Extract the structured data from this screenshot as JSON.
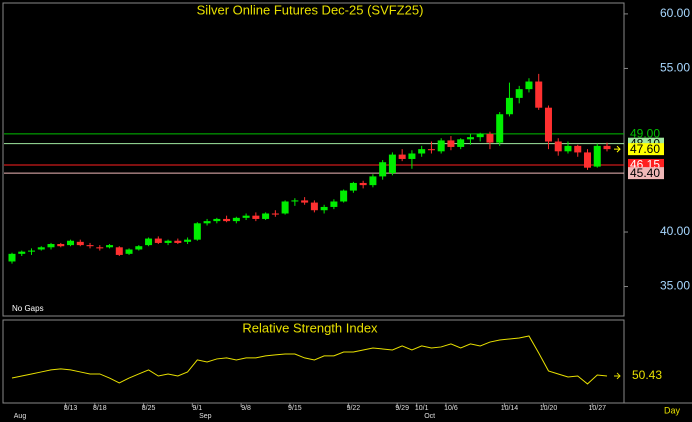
{
  "chart_data": [
    {
      "type": "candlestick",
      "title": "Silver Online Futures Dec-25 (SVFZ25)",
      "note": "No Gaps",
      "categories": [
        null,
        null,
        null,
        null,
        null,
        null,
        "8/13",
        null,
        null,
        "8/18",
        null,
        null,
        null,
        null,
        "8/25",
        null,
        null,
        null,
        null,
        "9/1",
        null,
        null,
        null,
        null,
        "9/8",
        null,
        null,
        null,
        null,
        "9/15",
        null,
        null,
        null,
        null,
        null,
        "9/22",
        null,
        null,
        null,
        null,
        "9/29",
        null,
        "10/1",
        null,
        null,
        "10/6",
        null,
        null,
        null,
        null,
        null,
        "10/14",
        null,
        null,
        null,
        "10/20",
        null,
        null,
        null,
        null,
        "10/27",
        null,
        null
      ],
      "months": [
        "Aug",
        null,
        null,
        null,
        null,
        null,
        null,
        null,
        null,
        null,
        null,
        null,
        null,
        null,
        null,
        null,
        null,
        null,
        null,
        "Sep",
        null,
        null,
        null,
        null,
        null,
        null,
        null,
        null,
        null,
        null,
        null,
        null,
        null,
        null,
        null,
        null,
        null,
        null,
        null,
        null,
        null,
        null,
        "Oct",
        null,
        null,
        null,
        null,
        null,
        null,
        null,
        null,
        null,
        null,
        null,
        null,
        null,
        null,
        null,
        null,
        null,
        null,
        null
      ],
      "x_unit": "Day",
      "open": [
        37.3,
        38.0,
        38.2,
        38.4,
        38.6,
        38.9,
        38.8,
        39.1,
        38.8,
        38.6,
        38.6,
        38.6,
        38.0,
        38.4,
        38.8,
        39.4,
        39.0,
        39.2,
        39.1,
        39.3,
        40.8,
        41.0,
        41.2,
        41.0,
        41.3,
        41.5,
        41.2,
        41.7,
        41.7,
        42.8,
        42.9,
        42.7,
        42.0,
        42.3,
        42.8,
        43.8,
        44.5,
        44.3,
        45.1,
        45.4,
        47.1,
        46.7,
        47.2,
        47.6,
        47.4,
        48.4,
        47.8,
        48.5,
        48.7,
        49.0,
        48.2,
        50.8,
        52.3,
        53.1,
        53.8,
        51.4,
        48.3,
        47.4,
        47.9,
        47.3,
        46.0,
        47.9
      ],
      "high": [
        38.1,
        38.3,
        38.5,
        38.7,
        39.0,
        39.0,
        39.3,
        39.3,
        39.0,
        38.8,
        38.9,
        38.7,
        38.5,
        38.8,
        39.5,
        39.6,
        39.3,
        39.4,
        39.5,
        40.9,
        41.2,
        41.3,
        41.5,
        41.4,
        41.7,
        41.8,
        41.8,
        42.0,
        42.9,
        43.1,
        43.2,
        42.9,
        42.5,
        43.0,
        43.9,
        44.6,
        44.7,
        45.3,
        46.6,
        47.3,
        47.6,
        47.5,
        47.9,
        48.3,
        48.6,
        48.8,
        48.6,
        49.0,
        49.1,
        49.2,
        51.0,
        53.7,
        53.4,
        54.1,
        54.5,
        51.6,
        48.6,
        48.3,
        48.0,
        47.6,
        48.1,
        48.2
      ],
      "low": [
        37.1,
        37.8,
        37.9,
        38.3,
        38.4,
        38.6,
        38.7,
        38.7,
        38.5,
        38.3,
        38.5,
        37.8,
        37.9,
        38.3,
        38.7,
        38.9,
        38.8,
        38.9,
        38.9,
        39.2,
        40.6,
        40.8,
        40.9,
        40.8,
        41.1,
        41.0,
        41.1,
        41.4,
        41.6,
        42.4,
        42.5,
        41.8,
        41.7,
        42.1,
        42.7,
        43.6,
        44.0,
        44.1,
        44.8,
        45.2,
        46.5,
        45.8,
        46.9,
        47.2,
        47.2,
        47.5,
        47.6,
        48.0,
        48.3,
        47.6,
        47.9,
        50.6,
        51.8,
        52.8,
        51.2,
        47.6,
        47.0,
        47.2,
        46.9,
        45.7,
        45.9,
        47.4
      ],
      "close": [
        38.0,
        38.2,
        38.3,
        38.6,
        38.9,
        38.7,
        39.2,
        38.8,
        38.7,
        38.5,
        38.8,
        37.9,
        38.4,
        38.7,
        39.4,
        39.0,
        39.2,
        39.0,
        39.3,
        40.8,
        41.0,
        41.2,
        41.0,
        41.3,
        41.5,
        41.2,
        41.7,
        41.6,
        42.8,
        42.9,
        42.7,
        42.0,
        42.3,
        42.8,
        43.8,
        44.5,
        44.3,
        45.1,
        46.4,
        47.1,
        46.7,
        47.2,
        47.6,
        47.5,
        48.4,
        47.8,
        48.5,
        48.7,
        49.0,
        48.2,
        50.8,
        52.3,
        53.1,
        53.8,
        51.4,
        48.3,
        47.4,
        47.9,
        47.3,
        45.9,
        47.9,
        47.6
      ],
      "up_color": "#00ee00",
      "down_color": "#ff3030",
      "ylim": [
        32.3,
        61
      ],
      "yticks": [
        {
          "value": 60,
          "label": "60.00"
        },
        {
          "value": 55,
          "label": "55.00"
        },
        {
          "value": 40,
          "label": "40.00"
        },
        {
          "value": 35,
          "label": "35.00"
        }
      ],
      "levels": [
        {
          "value": 49,
          "label": "49.00",
          "color": "#00c000",
          "text_color": "#00e000",
          "box": false
        },
        {
          "value": 48.1,
          "label": "48.10",
          "color": "#a0e8a0",
          "text_color": "#000000",
          "box": true
        },
        {
          "value": 47.6,
          "label": "47.60",
          "color": "#ffff00",
          "text_color": "#000000",
          "box": true,
          "line": false
        },
        {
          "value": 46.15,
          "label": "46.15",
          "color": "#ff2020",
          "text_color": "#ffffff",
          "box": true
        },
        {
          "value": 45.4,
          "label": "45.40",
          "color": "#f0b8b8",
          "text_color": "#000000",
          "box": true
        }
      ]
    },
    {
      "type": "line",
      "title": "Relative Strength Index",
      "color": "#e8e000",
      "ylim": [
        35,
        80
      ],
      "values": [
        49.2,
        50.4,
        51.6,
        52.8,
        54.0,
        54.6,
        54.0,
        52.8,
        51.6,
        51.6,
        49.2,
        46.3,
        49.2,
        51.6,
        54.0,
        50.4,
        51.6,
        50.4,
        52.8,
        59.9,
        58.7,
        60.5,
        61.1,
        59.9,
        61.1,
        61.1,
        62.3,
        62.9,
        63.4,
        63.4,
        61.1,
        59.9,
        62.3,
        62.3,
        64.6,
        64.6,
        65.8,
        67.0,
        66.4,
        65.8,
        68.2,
        65.8,
        68.2,
        67.0,
        67.6,
        69.4,
        67.0,
        69.4,
        68.2,
        70.5,
        71.7,
        72.3,
        72.9,
        74.1,
        64.0,
        53.4,
        51.6,
        49.8,
        50.4,
        45.7,
        51.0,
        50.43
      ]
    }
  ]
}
